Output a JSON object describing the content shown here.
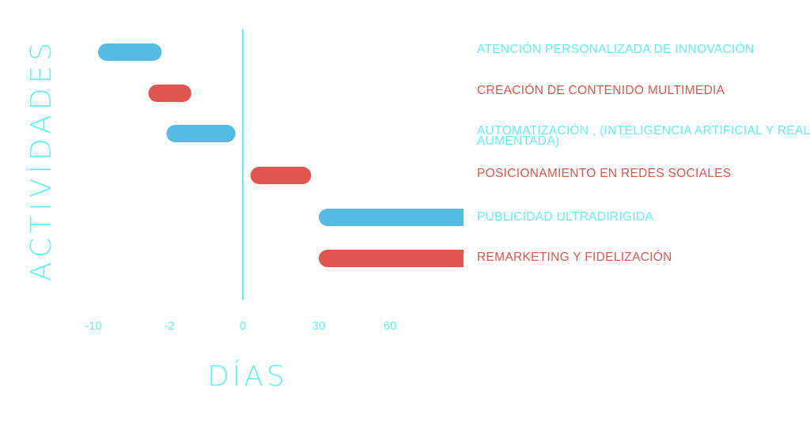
{
  "chart_data": {
    "type": "bar",
    "title": "",
    "xlabel": "DÍAS",
    "ylabel": "ACTIVIDADES",
    "x_ticks": [
      "-10",
      "-2",
      "0",
      "30",
      "60"
    ],
    "categories": [
      [
        "ATENCIÓN PERSONALIZADA DE INNOVACIÓN"
      ],
      [
        "CREACIÓN DE CONTENIDO MULTIMEDIA"
      ],
      [
        "AUTOMATIZACIÓN , (INTELIGENCIA ARTIFICIAL Y REALIDAD",
        "AUMENTADA)"
      ],
      [
        "POSICIONAMIENTO EN REDES SOCIALES"
      ],
      [
        "PUBLICIDAD ULTRADIRIGIDA"
      ],
      [
        "REMARKETING Y FIDELIZACIÓN"
      ]
    ],
    "ranges": [
      {
        "start": -9.5,
        "end": -2.8
      },
      {
        "start": -4.2,
        "end": -1.4
      },
      {
        "start": -2.3,
        "end": -0.2
      },
      {
        "start": 3,
        "end": 27
      },
      {
        "start": 30,
        "end": 90
      },
      {
        "start": 30,
        "end": 90
      }
    ],
    "grid": false,
    "legend": "none"
  },
  "colors": {
    "axis": "#5ff0f5",
    "cyan_text": "#5ff0f5",
    "blue_bar": "#56bbe3",
    "red_bar": "#e0554e",
    "red_text": "#e0554e"
  }
}
